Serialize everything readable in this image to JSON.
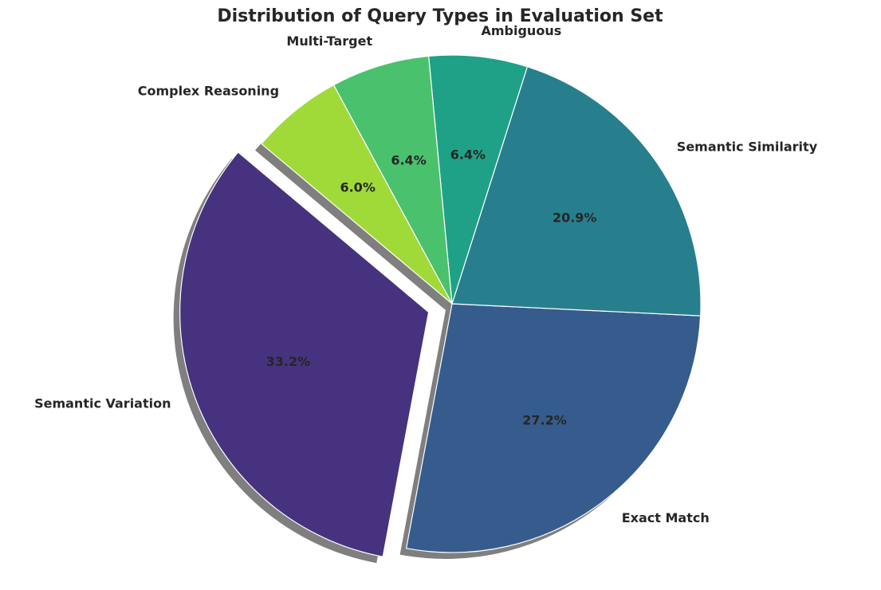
{
  "chart_data": {
    "type": "pie",
    "title": "Distribution of Query Types in Evaluation Set",
    "categories": [
      "Semantic Variation",
      "Exact Match",
      "Semantic Similarity",
      "Ambiguous",
      "Multi-Target",
      "Complex Reasoning"
    ],
    "values": [
      33.2,
      27.2,
      20.9,
      6.4,
      6.4,
      6.0
    ],
    "value_labels": [
      "33.2%",
      "27.2%",
      "20.9%",
      "6.4%",
      "6.4%",
      "6.0%"
    ],
    "colors": [
      "#46327e",
      "#365c8d",
      "#277f8e",
      "#1fa187",
      "#4ac16d",
      "#a0da39"
    ],
    "start_angle": 140,
    "explode": [
      0.1,
      0,
      0,
      0,
      0,
      0
    ],
    "shadow": true
  }
}
